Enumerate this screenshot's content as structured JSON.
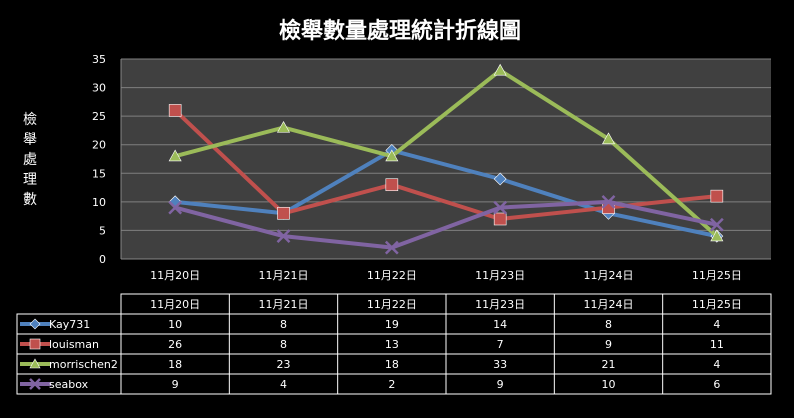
{
  "chart_data": {
    "type": "line",
    "title": "檢舉數量處理統計折線圖",
    "ylabel": "檢舉處理數",
    "xlabel": "",
    "categories": [
      "11月20日",
      "11月21日",
      "11月22日",
      "11月23日",
      "11月24日",
      "11月25日"
    ],
    "yticks": [
      0,
      5,
      10,
      15,
      20,
      25,
      30,
      35
    ],
    "ylim": [
      0,
      35
    ],
    "grid": true,
    "series": [
      {
        "name": "Kay731",
        "values": [
          10,
          8,
          19,
          14,
          8,
          4
        ],
        "color": "#4f81bd",
        "marker": "diamond"
      },
      {
        "name": "louisman",
        "values": [
          26,
          8,
          13,
          7,
          9,
          11
        ],
        "color": "#c0504d",
        "marker": "square"
      },
      {
        "name": "morrischen2",
        "values": [
          18,
          23,
          18,
          33,
          21,
          4
        ],
        "color": "#9bbb59",
        "marker": "triangle"
      },
      {
        "name": "seabox",
        "values": [
          9,
          4,
          2,
          9,
          10,
          6
        ],
        "color": "#8064a2",
        "marker": "x"
      }
    ],
    "data_table": true
  },
  "colors": {
    "background": "#000000",
    "plot_area": "#404040",
    "gridline": "#7f7f7f"
  }
}
